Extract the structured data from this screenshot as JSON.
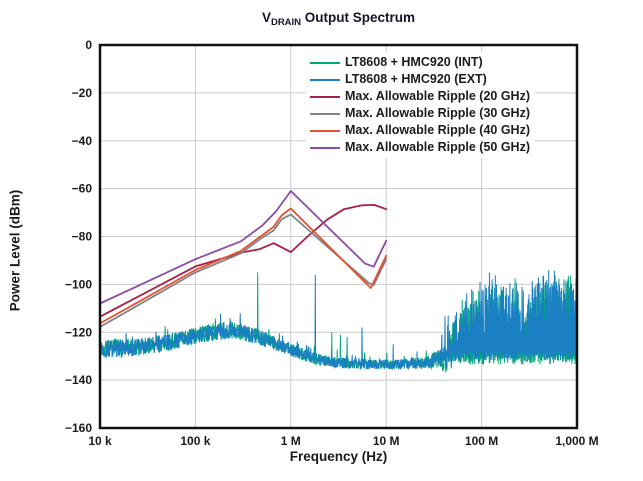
{
  "title": {
    "prefix": "V",
    "subscript": "DRAIN",
    "rest": " Output Spectrum"
  },
  "axes": {
    "x": {
      "label": "Frequency (Hz)",
      "scale": "log",
      "log_range": [
        4,
        9
      ],
      "ticks": [
        "10 k",
        "100 k",
        "1 M",
        "10 M",
        "100 M",
        "1,000 M"
      ]
    },
    "y": {
      "label": "Power Level (dBm)",
      "range": [
        -160,
        0
      ],
      "step": 20,
      "ticks": [
        "0",
        "−20",
        "−40",
        "−60",
        "−80",
        "−100",
        "−120",
        "−140",
        "−160"
      ]
    }
  },
  "legend": {
    "entries": [
      {
        "label": "LT8608 + HMC920 (INT)",
        "color": "#00A878"
      },
      {
        "label": "LT8608 + HMC920 (EXT)",
        "color": "#1B7FC4"
      },
      {
        "label": "Max. Allowable Ripple (20 GHz)",
        "color": "#A81E46"
      },
      {
        "label": "Max. Allowable Ripple (30 GHz)",
        "color": "#7E828B"
      },
      {
        "label": "Max. Allowable Ripple (40 GHz)",
        "color": "#E6512F"
      },
      {
        "label": "Max. Allowable Ripple (50 GHz)",
        "color": "#8A4CA8"
      }
    ]
  },
  "colors": {
    "frame": "#111111",
    "grid": "#c9cbcc",
    "background": "#ffffff",
    "title_text": "#14142b"
  },
  "chart_data": {
    "type": "line",
    "title": "VDRAIN Output Spectrum",
    "xlabel": "Frequency (Hz)",
    "ylabel": "Power Level (dBm)",
    "x_log_range": [
      4,
      9
    ],
    "ylim": [
      -160,
      0
    ],
    "grid": true,
    "legend_position": "top-right-inside",
    "series": [
      {
        "name": "LT8608 + HMC920 (INT)",
        "color": "#00A878",
        "kind": "noise",
        "seed": 7,
        "base_envelope": [
          [
            4.0,
            -127
          ],
          [
            4.35,
            -126.5
          ],
          [
            4.7,
            -124.5
          ],
          [
            5.0,
            -121.5
          ],
          [
            5.2,
            -119.8
          ],
          [
            5.35,
            -119.2
          ],
          [
            5.5,
            -120
          ],
          [
            5.7,
            -122.5
          ],
          [
            5.9,
            -125.5
          ],
          [
            6.1,
            -129
          ],
          [
            6.3,
            -131.5
          ],
          [
            6.5,
            -132.8
          ],
          [
            6.8,
            -133.3
          ],
          [
            7.2,
            -133.3
          ],
          [
            7.45,
            -132.5
          ],
          [
            7.58,
            -130.5
          ]
        ],
        "fuzz_envelope": [
          [
            4.0,
            3.8
          ],
          [
            5.0,
            3.5
          ],
          [
            5.3,
            3.8
          ],
          [
            5.8,
            3.0
          ],
          [
            6.1,
            2.6
          ],
          [
            6.5,
            2.2
          ],
          [
            7.0,
            2.0
          ],
          [
            7.4,
            2.5
          ],
          [
            7.58,
            4.0
          ]
        ],
        "pop_envelope": [
          [
            4.0,
            5
          ],
          [
            5.3,
            6
          ],
          [
            6.0,
            4
          ],
          [
            7.0,
            4
          ],
          [
            7.5,
            12
          ],
          [
            7.58,
            16
          ]
        ],
        "dense_start": 7.58,
        "dense_floor": -131,
        "dense_spread": 20,
        "top_envelope": [
          [
            7.58,
            -120
          ],
          [
            7.72,
            -114
          ],
          [
            7.88,
            -108
          ],
          [
            8.02,
            -104
          ],
          [
            8.15,
            -101
          ],
          [
            8.25,
            -103
          ],
          [
            8.35,
            -101
          ],
          [
            8.45,
            -107
          ],
          [
            8.55,
            -101
          ],
          [
            8.65,
            -97
          ],
          [
            8.75,
            -99
          ],
          [
            8.85,
            -96
          ],
          [
            9.0,
            -94
          ]
        ],
        "spikes": [
          [
            275000,
            -122
          ],
          [
            450000,
            -95
          ],
          [
            760000,
            -120.5
          ],
          [
            2700000,
            -120
          ],
          [
            3300000,
            -121
          ],
          [
            3900000,
            -122
          ]
        ]
      },
      {
        "name": "LT8608 + HMC920 (EXT)",
        "color": "#1B7FC4",
        "kind": "noise",
        "seed": 13,
        "base_envelope": [
          [
            4.0,
            -127
          ],
          [
            4.35,
            -126.5
          ],
          [
            4.7,
            -124.5
          ],
          [
            5.0,
            -121.5
          ],
          [
            5.2,
            -119.8
          ],
          [
            5.35,
            -119.2
          ],
          [
            5.5,
            -120
          ],
          [
            5.7,
            -122.5
          ],
          [
            5.9,
            -125.5
          ],
          [
            6.1,
            -129
          ],
          [
            6.3,
            -131.5
          ],
          [
            6.5,
            -132.8
          ],
          [
            6.8,
            -133.3
          ],
          [
            7.2,
            -133.3
          ],
          [
            7.45,
            -132.5
          ],
          [
            7.58,
            -130.5
          ]
        ],
        "fuzz_envelope": [
          [
            4.0,
            3.8
          ],
          [
            5.0,
            3.5
          ],
          [
            5.3,
            3.8
          ],
          [
            5.8,
            3.0
          ],
          [
            6.1,
            2.6
          ],
          [
            6.5,
            2.2
          ],
          [
            7.0,
            2.0
          ],
          [
            7.4,
            2.5
          ],
          [
            7.58,
            4.0
          ]
        ],
        "pop_envelope": [
          [
            4.0,
            5
          ],
          [
            5.3,
            6
          ],
          [
            6.0,
            4
          ],
          [
            7.0,
            4
          ],
          [
            7.5,
            12
          ],
          [
            7.58,
            16
          ]
        ],
        "dense_start": 7.58,
        "dense_floor": -129.5,
        "dense_spread": 20,
        "top_envelope": [
          [
            7.58,
            -118
          ],
          [
            7.7,
            -112
          ],
          [
            7.85,
            -106
          ],
          [
            8.0,
            -102
          ],
          [
            8.12,
            -99
          ],
          [
            8.22,
            -101
          ],
          [
            8.32,
            -99
          ],
          [
            8.4,
            -103
          ],
          [
            8.47,
            -108
          ],
          [
            8.55,
            -99
          ],
          [
            8.63,
            -95
          ],
          [
            8.72,
            -98
          ],
          [
            8.8,
            -95.5
          ],
          [
            8.9,
            -96.5
          ],
          [
            9.0,
            -92.5
          ]
        ],
        "spikes": [
          [
            230000,
            -114
          ],
          [
            295000,
            -112
          ],
          [
            1800000,
            -96
          ],
          [
            5600000,
            -118
          ],
          [
            11800000,
            -125
          ],
          [
            21000000,
            -128
          ]
        ]
      },
      {
        "name": "Max. Allowable Ripple (20 GHz)",
        "color": "#A81E46",
        "kind": "line",
        "points": [
          [
            10000,
            -113.5
          ],
          [
            100000,
            -92.5
          ],
          [
            220000,
            -88.5
          ],
          [
            320000,
            -86.5
          ],
          [
            470000,
            -85.3
          ],
          [
            660000,
            -82.8
          ],
          [
            1000000,
            -86.5
          ],
          [
            1500000,
            -80
          ],
          [
            2400000,
            -73
          ],
          [
            3600000,
            -68.6
          ],
          [
            5500000,
            -67
          ],
          [
            7500000,
            -66.8
          ],
          [
            10000000,
            -68.6
          ]
        ]
      },
      {
        "name": "Max. Allowable Ripple (30 GHz)",
        "color": "#7E828B",
        "kind": "line",
        "points": [
          [
            10000,
            -117.8
          ],
          [
            100000,
            -95
          ],
          [
            300000,
            -87
          ],
          [
            500000,
            -80.5
          ],
          [
            660000,
            -77.5
          ],
          [
            800000,
            -72.8
          ],
          [
            1000000,
            -70.8
          ],
          [
            6600000,
            -99.5
          ],
          [
            7400000,
            -100.3
          ],
          [
            10000000,
            -89.5
          ]
        ]
      },
      {
        "name": "Max. Allowable Ripple (40 GHz)",
        "color": "#E6512F",
        "kind": "line",
        "points": [
          [
            10000,
            -116.3
          ],
          [
            100000,
            -94
          ],
          [
            300000,
            -86
          ],
          [
            500000,
            -79.5
          ],
          [
            660000,
            -76
          ],
          [
            800000,
            -71.2
          ],
          [
            1000000,
            -68.3
          ],
          [
            6900000,
            -101.5
          ],
          [
            10000000,
            -88
          ]
        ]
      },
      {
        "name": "Max. Allowable Ripple (50 GHz)",
        "color": "#8A4CA8",
        "kind": "line",
        "points": [
          [
            10000,
            -108
          ],
          [
            100000,
            -89.5
          ],
          [
            300000,
            -82
          ],
          [
            500000,
            -75.5
          ],
          [
            700000,
            -69.5
          ],
          [
            1000000,
            -61
          ],
          [
            6000000,
            -91.3
          ],
          [
            7400000,
            -92.6
          ],
          [
            10000000,
            -81.8
          ]
        ]
      }
    ]
  }
}
